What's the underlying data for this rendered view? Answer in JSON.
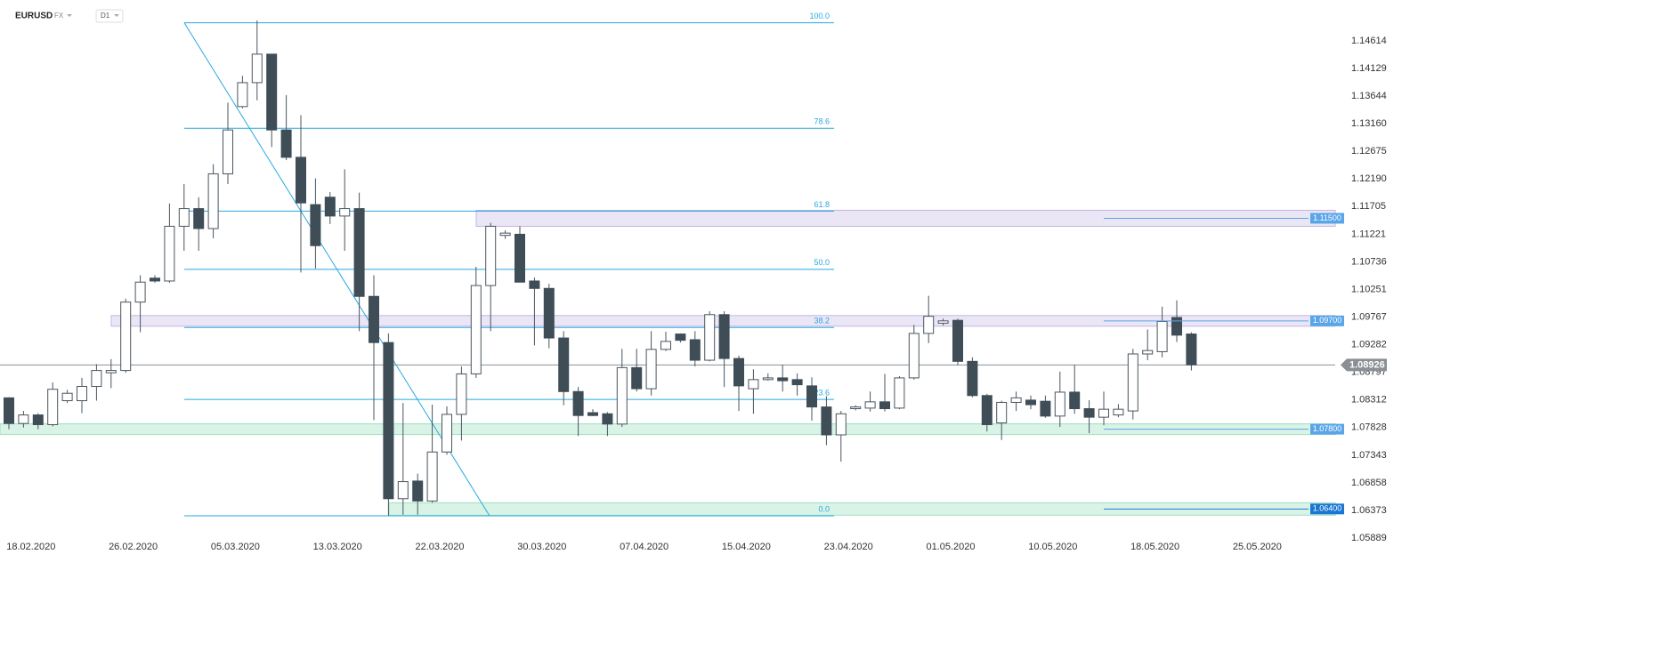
{
  "chart_data": {
    "type": "candlestick",
    "symbol": "EURUSD",
    "market": "FX",
    "interval": "D1",
    "up_color": "#ffffff",
    "down_color": "#3f4d57",
    "categories": [
      null,
      null,
      "18.02.2020",
      null,
      null,
      null,
      null,
      null,
      null,
      "26.02.2020",
      null,
      null,
      null,
      null,
      null,
      null,
      "05.03.2020",
      null,
      null,
      null,
      null,
      null,
      null,
      "13.03.2020",
      null,
      null,
      null,
      null,
      null,
      null,
      "22.03.2020",
      null,
      null,
      null,
      null,
      null,
      null,
      "30.03.2020",
      null,
      null,
      null,
      null,
      null,
      null,
      "07.04.2020",
      null,
      null,
      null,
      null,
      null,
      null,
      "15.04.2020",
      null,
      null,
      null,
      null,
      null,
      null,
      "23.04.2020",
      null,
      null,
      null,
      null,
      null,
      null,
      "01.05.2020",
      null,
      null,
      null,
      null,
      null,
      null,
      "10.05.2020",
      null,
      null,
      null,
      null,
      null,
      null,
      "18.05.2020",
      null,
      null,
      null,
      null,
      null,
      null,
      "25.05.2020"
    ],
    "open": [
      1.0835,
      1.079,
      1.0805,
      1.0788,
      1.083,
      1.083,
      1.0855,
      1.0879,
      1.0883,
      1.1003,
      1.1045,
      1.104,
      1.1136,
      1.1167,
      1.1132,
      1.1228,
      1.1346,
      1.1388,
      1.1438,
      1.1305,
      1.1257,
      1.1174,
      1.1187,
      1.1154,
      1.1167,
      1.1013,
      1.0932,
      1.0658,
      1.0689,
      1.0654,
      1.074,
      1.0806,
      1.0877,
      1.1032,
      1.112,
      1.1122,
      1.104,
      1.1027,
      1.094,
      1.0846,
      1.0809,
      1.0807,
      1.0789,
      1.0888,
      1.0851,
      1.092,
      1.0947,
      1.0937,
      1.0901,
      1.0981,
      1.0904,
      1.0851,
      1.0867,
      1.087,
      1.0867,
      1.0856,
      1.0819,
      1.077,
      1.0816,
      1.0817,
      1.0828,
      1.0817,
      1.087,
      1.0948,
      1.0966,
      1.0971,
      1.0899,
      1.0839,
      1.0791,
      1.0827,
      1.0831,
      1.0829,
      1.0803,
      1.0845,
      1.0816,
      1.0801,
      1.0805,
      1.0812,
      1.0912,
      1.0916,
      1.0976,
      1.0947,
      null,
      null,
      null,
      null,
      null
    ],
    "high": [
      1.0836,
      1.0812,
      1.0808,
      1.0862,
      1.0849,
      1.087,
      1.0894,
      1.0903,
      1.1009,
      1.105,
      1.105,
      1.1176,
      1.121,
      1.1187,
      1.1245,
      1.1353,
      1.14,
      1.1497,
      1.1438,
      1.1366,
      1.1331,
      1.122,
      1.1196,
      1.1236,
      1.1195,
      1.105,
      1.0948,
      1.0826,
      1.0702,
      1.0823,
      1.082,
      1.089,
      1.1065,
      1.1142,
      1.1129,
      1.1136,
      1.1046,
      1.1035,
      1.0952,
      1.0854,
      1.0815,
      1.081,
      1.0921,
      1.0921,
      1.0952,
      1.0951,
      1.0948,
      1.0952,
      1.0987,
      1.0987,
      1.0909,
      1.0885,
      1.0878,
      1.0893,
      1.0878,
      1.0871,
      1.0838,
      1.0812,
      1.0822,
      1.0846,
      1.0877,
      1.0873,
      1.0963,
      1.1014,
      1.0974,
      1.0974,
      1.0906,
      1.0842,
      1.083,
      1.0846,
      1.0839,
      1.0839,
      1.0881,
      1.0893,
      1.0831,
      1.0846,
      1.0824,
      1.0921,
      1.0955,
      1.0995,
      1.1006,
      1.095,
      null,
      null,
      null,
      null,
      null
    ],
    "low": [
      1.078,
      1.0783,
      1.078,
      1.0785,
      1.0826,
      1.0808,
      1.083,
      1.0852,
      1.0879,
      1.095,
      1.1037,
      1.1037,
      1.1093,
      1.1093,
      1.1115,
      1.121,
      1.1343,
      1.1357,
      1.1275,
      1.1252,
      1.1055,
      1.1062,
      1.114,
      1.1093,
      1.0952,
      1.0796,
      1.0628,
      1.063,
      1.063,
      1.0651,
      1.0735,
      1.076,
      1.087,
      1.0952,
      1.1114,
      1.1038,
      1.0927,
      1.0922,
      1.0822,
      1.0768,
      1.0803,
      1.0768,
      1.0784,
      1.0846,
      1.0839,
      1.0917,
      1.0932,
      1.089,
      1.0899,
      1.0854,
      1.0812,
      1.0807,
      1.0865,
      1.0846,
      1.0839,
      1.0795,
      1.0752,
      1.0723,
      1.0813,
      1.0811,
      1.0811,
      1.0815,
      1.0867,
      1.0931,
      1.0962,
      1.0893,
      1.0836,
      1.0776,
      1.0761,
      1.0812,
      1.0815,
      1.08,
      1.0784,
      1.0807,
      1.0773,
      1.0787,
      1.0801,
      1.0797,
      1.0901,
      1.0906,
      1.0933,
      1.0883,
      null,
      null,
      null,
      null,
      null
    ],
    "close": [
      1.079,
      1.0805,
      1.0788,
      1.085,
      1.0843,
      1.0855,
      1.0883,
      1.0883,
      1.1003,
      1.1038,
      1.104,
      1.1136,
      1.1167,
      1.1132,
      1.1228,
      1.1305,
      1.1388,
      1.1438,
      1.1305,
      1.1257,
      1.1177,
      1.1102,
      1.1154,
      1.1167,
      1.1013,
      1.0932,
      1.0658,
      1.0688,
      1.0654,
      1.074,
      1.0806,
      1.0877,
      1.1032,
      1.1136,
      1.1124,
      1.1038,
      1.1027,
      1.094,
      1.0846,
      1.0804,
      1.0804,
      1.0789,
      1.0888,
      1.0851,
      1.092,
      1.0934,
      1.0936,
      1.0901,
      1.0981,
      1.0904,
      1.0856,
      1.0867,
      1.087,
      1.0865,
      1.0858,
      1.0819,
      1.077,
      1.0807,
      1.0819,
      1.0828,
      1.0816,
      1.087,
      1.0948,
      1.0978,
      1.097,
      1.0899,
      1.0839,
      1.0788,
      1.0827,
      1.0835,
      1.0823,
      1.0803,
      1.0845,
      1.0816,
      1.0801,
      1.0815,
      1.0815,
      1.0912,
      1.0918,
      1.0969,
      1.0945,
      1.0893,
      null,
      null,
      null,
      null,
      null
    ],
    "ylim": [
      1.055,
      1.1533
    ],
    "yticks": [
      1.14614,
      1.14129,
      1.13644,
      {
        "value": 1.1316,
        "label": "1.13160"
      },
      1.12675,
      {
        "value": 1.1219,
        "label": "1.12190"
      },
      1.11705,
      1.11221,
      1.10736,
      1.10251,
      1.09767,
      1.09282,
      1.08797,
      1.08312,
      1.07828,
      1.07343,
      1.06858,
      1.06373,
      1.05889
    ],
    "last_price": 1.08926,
    "levels": [
      {
        "value": 1.115,
        "label": "1.11500"
      },
      {
        "value": 1.097,
        "label": "1.09700"
      },
      {
        "value": 1.078,
        "label": "1.07800"
      },
      {
        "value": 1.064,
        "label": "1.06400"
      }
    ],
    "fibonacci": {
      "high": 1.1493,
      "low": 1.0628,
      "levels": [
        {
          "value": 100,
          "label": "100.0"
        },
        78.6,
        61.8,
        {
          "value": 50,
          "label": "50.0"
        },
        38.2,
        23.6,
        {
          "value": 0,
          "label": "0.0"
        }
      ]
    }
  }
}
